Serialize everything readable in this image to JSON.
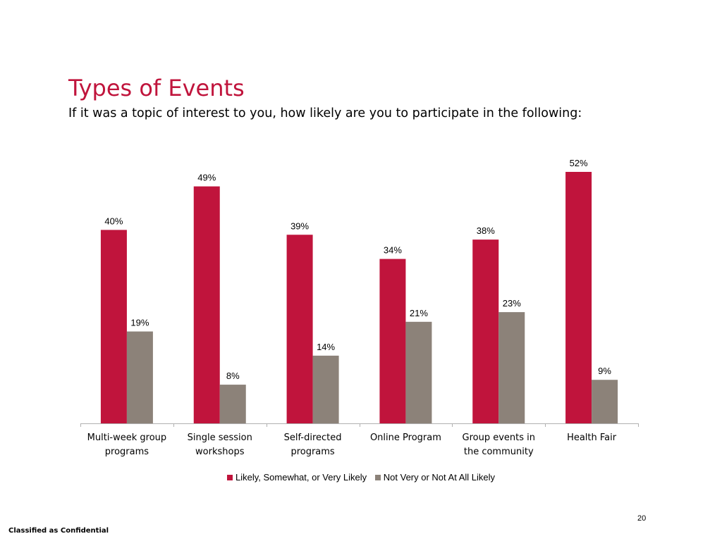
{
  "page": {
    "title": "Types of Events",
    "subtitle": "If it was a topic of interest to you, how likely are you to participate in the following:",
    "page_number": "20",
    "footer": "Classified as Confidential"
  },
  "chart_data": {
    "type": "bar",
    "categories": [
      [
        "Multi-week group",
        "programs"
      ],
      [
        "Single session",
        "workshops"
      ],
      [
        "Self-directed",
        "programs"
      ],
      [
        "Online Program"
      ],
      [
        "Group events in",
        "the community"
      ],
      [
        "Health Fair"
      ]
    ],
    "series": [
      {
        "name": "Likely, Somewhat, or Very Likely",
        "color": "#c0143c",
        "values": [
          40,
          49,
          39,
          34,
          38,
          52
        ],
        "labels": [
          "40%",
          "49%",
          "39%",
          "34%",
          "38%",
          "52%"
        ]
      },
      {
        "name": "Not Very or Not At All Likely",
        "color": "#8c8279",
        "values": [
          19,
          8,
          14,
          21,
          23,
          9
        ],
        "labels": [
          "19%",
          "8%",
          "14%",
          "21%",
          "23%",
          "9%"
        ]
      }
    ],
    "ylim": [
      0,
      52
    ],
    "grid": false,
    "legend_position": "bottom"
  }
}
